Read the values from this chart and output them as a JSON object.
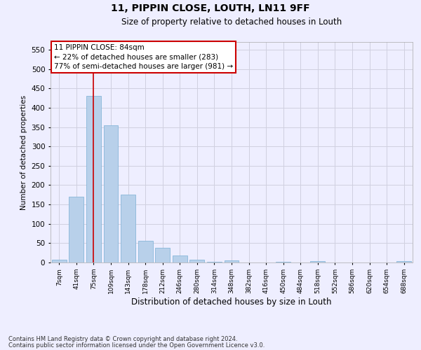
{
  "title1": "11, PIPPIN CLOSE, LOUTH, LN11 9FF",
  "title2": "Size of property relative to detached houses in Louth",
  "xlabel": "Distribution of detached houses by size in Louth",
  "ylabel": "Number of detached properties",
  "bar_labels": [
    "7sqm",
    "41sqm",
    "75sqm",
    "109sqm",
    "143sqm",
    "178sqm",
    "212sqm",
    "246sqm",
    "280sqm",
    "314sqm",
    "348sqm",
    "382sqm",
    "416sqm",
    "450sqm",
    "484sqm",
    "518sqm",
    "552sqm",
    "586sqm",
    "620sqm",
    "654sqm",
    "688sqm"
  ],
  "bar_values": [
    8,
    170,
    430,
    355,
    175,
    57,
    38,
    18,
    8,
    2,
    5,
    0,
    0,
    2,
    0,
    3,
    0,
    0,
    0,
    0,
    3
  ],
  "bar_color": "#b8d0ea",
  "bar_edge_color": "#7aafd4",
  "grid_color": "#d0d0e0",
  "annotation_text": "11 PIPPIN CLOSE: 84sqm\n← 22% of detached houses are smaller (283)\n77% of semi-detached houses are larger (981) →",
  "annotation_box_color": "#ffffff",
  "annotation_edge_color": "#cc0000",
  "vline_x": 2,
  "vline_color": "#cc0000",
  "ylim": [
    0,
    570
  ],
  "yticks": [
    0,
    50,
    100,
    150,
    200,
    250,
    300,
    350,
    400,
    450,
    500,
    550
  ],
  "footer_line1": "Contains HM Land Registry data © Crown copyright and database right 2024.",
  "footer_line2": "Contains public sector information licensed under the Open Government Licence v3.0.",
  "bg_color": "#eeeeff"
}
